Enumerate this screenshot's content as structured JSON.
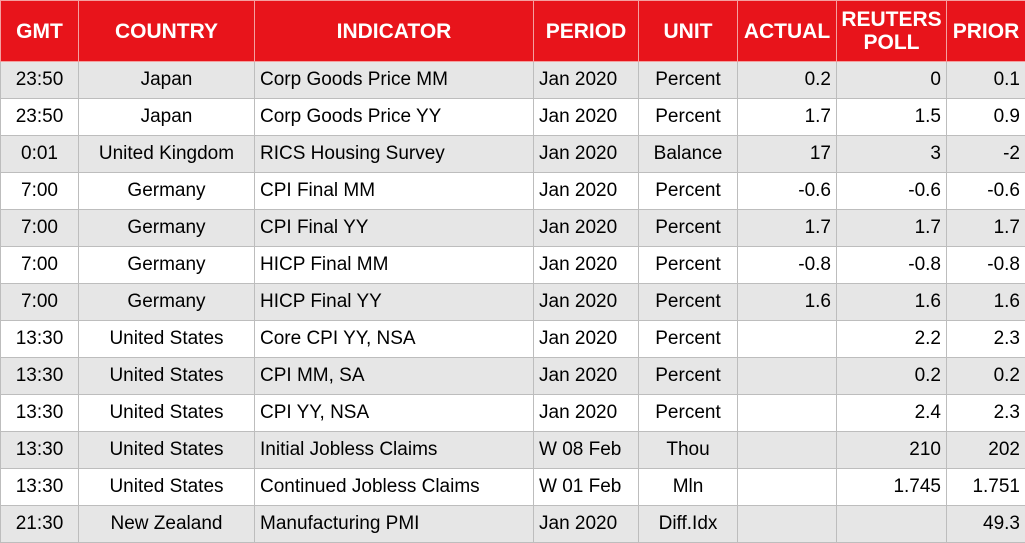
{
  "table": {
    "columns": [
      "GMT",
      "COUNTRY",
      "INDICATOR",
      "PERIOD",
      "UNIT",
      "ACTUAL",
      "REUTERS POLL",
      "PRIOR"
    ],
    "rows": [
      [
        "23:50",
        "Japan",
        "Corp Goods Price MM",
        "Jan 2020",
        "Percent",
        "0.2",
        "0",
        "0.1"
      ],
      [
        "23:50",
        "Japan",
        "Corp Goods Price YY",
        "Jan 2020",
        "Percent",
        "1.7",
        "1.5",
        "0.9"
      ],
      [
        "0:01",
        "United Kingdom",
        "RICS Housing Survey",
        "Jan 2020",
        "Balance",
        "17",
        "3",
        "-2"
      ],
      [
        "7:00",
        "Germany",
        "CPI Final MM",
        "Jan 2020",
        "Percent",
        "-0.6",
        "-0.6",
        "-0.6"
      ],
      [
        "7:00",
        "Germany",
        "CPI Final YY",
        "Jan 2020",
        "Percent",
        "1.7",
        "1.7",
        "1.7"
      ],
      [
        "7:00",
        "Germany",
        "HICP Final MM",
        "Jan 2020",
        "Percent",
        "-0.8",
        "-0.8",
        "-0.8"
      ],
      [
        "7:00",
        "Germany",
        "HICP Final YY",
        "Jan 2020",
        "Percent",
        "1.6",
        "1.6",
        "1.6"
      ],
      [
        "13:30",
        "United States",
        "Core CPI YY, NSA",
        "Jan 2020",
        "Percent",
        null,
        "2.2",
        "2.3"
      ],
      [
        "13:30",
        "United States",
        "CPI MM, SA",
        "Jan 2020",
        "Percent",
        null,
        "0.2",
        "0.2"
      ],
      [
        "13:30",
        "United States",
        "CPI YY, NSA",
        "Jan 2020",
        "Percent",
        null,
        "2.4",
        "2.3"
      ],
      [
        "13:30",
        "United States",
        "Initial Jobless Claims",
        "W 08 Feb",
        "Thou",
        null,
        "210",
        "202"
      ],
      [
        "13:30",
        "United States",
        "Continued Jobless Claims",
        "W 01 Feb",
        "Mln",
        null,
        "1.745",
        "1.751"
      ],
      [
        "21:30",
        "New Zealand",
        "Manufacturing PMI",
        "Jan 2020",
        "Diff.Idx",
        null,
        null,
        "49.3"
      ]
    ]
  }
}
